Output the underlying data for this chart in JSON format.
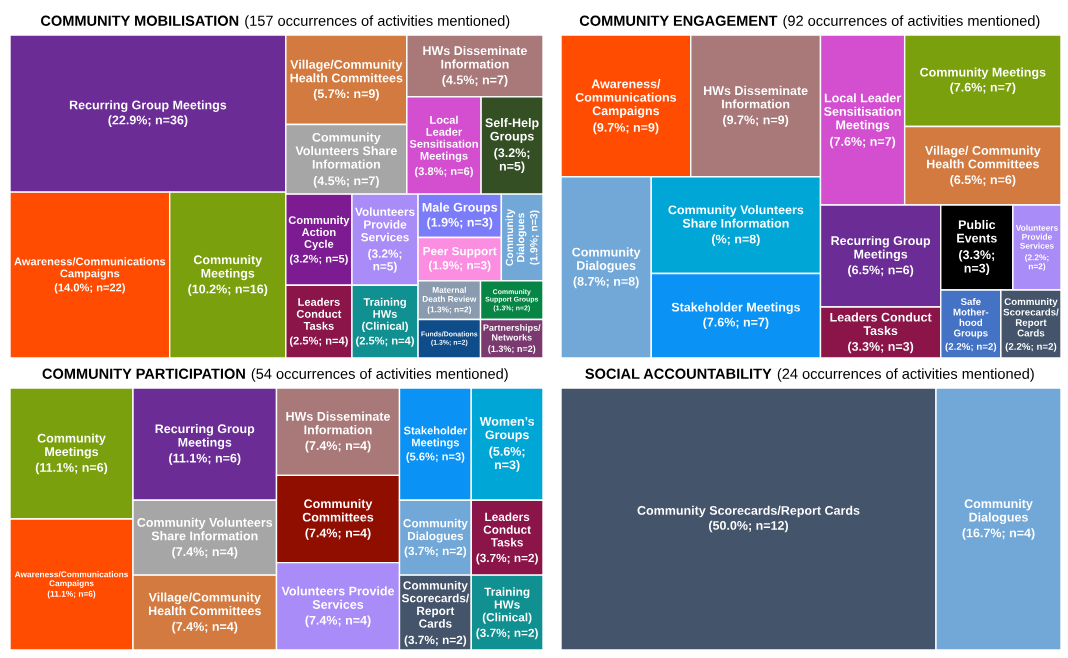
{
  "chart_data": [
    {
      "type": "other",
      "title": "COMMUNITY MOBILISATION",
      "subtitle": "(157 occurrences of activities mentioned)",
      "categories": [
        "Recurring Group Meetings",
        "Awareness/Communications Campaigns",
        "Community Meetings",
        "Village/Community Health Committees",
        "Community Volunteers Share Information",
        "HWs Disseminate Information",
        "Local Leader Sensitisation Meetings",
        "Self-Help Groups",
        "Community Action Cycle",
        "Volunteers Provide Services",
        "Leaders Conduct Tasks",
        "Training HWs (Clinical)",
        "Male Groups",
        "Peer Support",
        "Community Dialogues",
        "Maternal Death Review",
        "Funds/Donations",
        "Community Support Groups",
        "Partnerships/ Networks"
      ],
      "values": [
        36,
        22,
        16,
        9,
        7,
        7,
        6,
        5,
        5,
        5,
        4,
        4,
        3,
        3,
        3,
        2,
        2,
        2,
        2
      ],
      "value_labels": [
        "(22.9%; n=36)",
        "(14.0%; n=22)",
        "(10.2%; n=16)",
        "(5.7%: n=9)",
        "(4.5%; n=7)",
        "(4.5%; n=7)",
        "(3.8%; n=6)",
        "(3.2%; n=5)",
        "(3.2%; n=5)",
        "(3.2%; n=5)",
        "(2.5%; n=4)",
        "(2.5%; n=4)",
        "(1.9%; n=3)",
        "(1.9%; n=3)",
        "(1.9%; n=3)",
        "(1.3%; n=2)",
        "(1.3%; n=2)",
        "(1.3%; n=2)",
        "(1.3%; n=2)"
      ],
      "colors": [
        "#6b2c96",
        "#ff4c00",
        "#7aa00d",
        "#d27a3f",
        "#a6a6a6",
        "#a97878",
        "#d44fcf",
        "#344f24",
        "#7d1b92",
        "#a98cf8",
        "#8b1448",
        "#109090",
        "#7b7cfa",
        "#fb8ee0",
        "#72a8d8",
        "#8a9bb0",
        "#0f4d8a",
        "#078545",
        "#7a3a70"
      ]
    },
    {
      "type": "other",
      "title": "COMMUNITY ENGAGEMENT",
      "subtitle": "(92 occurrences of activities mentioned)",
      "categories": [
        "Awareness/ Communications Campaigns",
        "HWs Disseminate Information",
        "Community Dialogues",
        "Community Volunteers Share Information",
        "Stakeholder Meetings",
        "Local Leader Sensitisation Meetings",
        "Community Meetings",
        "Village/ Community Health Committees",
        "Recurring Group Meetings",
        "Leaders Conduct Tasks",
        "Public Events",
        "Volunteers Provide Services",
        "Safe Mother- hood Groups",
        "Community Scorecards/ Report Cards"
      ],
      "values": [
        9,
        9,
        8,
        8,
        7,
        7,
        7,
        6,
        6,
        3,
        3,
        2,
        2,
        2
      ],
      "value_labels": [
        "(9.7%; n=9)",
        "(9.7%; n=9)",
        "(8.7%; n=8)",
        "(%; n=8)",
        "(7.6%; n=7)",
        "(7.6%; n=7)",
        "(7.6%; n=7)",
        "(6.5%; n=6)",
        "(6.5%; n=6)",
        "(3.3%; n=3)",
        "(3.3%; n=3)",
        "(2.2%; n=2)",
        "(2.2%; n=2)",
        "(2.2%; n=2)"
      ],
      "colors": [
        "#ff4c00",
        "#a97878",
        "#72a8d8",
        "#00a6d6",
        "#0a93f5",
        "#d44fcf",
        "#7aa00d",
        "#d27a3f",
        "#6b2c96",
        "#8b1448",
        "#000000",
        "#a98cf8",
        "#4472c4",
        "#44546a"
      ]
    },
    {
      "type": "other",
      "title": "COMMUNITY PARTICIPATION",
      "subtitle": "(54 occurrences of activities mentioned)",
      "categories": [
        "Community Meetings",
        "Awareness/Communications Campaigns",
        "Recurring Group Meetings",
        "Community Volunteers Share Information",
        "Village/Community Health Committees",
        "HWs Disseminate Information",
        "Community Committees",
        "Volunteers Provide Services",
        "Stakeholder Meetings",
        "Women’s Groups",
        "Community Dialogues",
        "Leaders Conduct Tasks",
        "Community Scorecards/ Report Cards",
        "Training HWs (Clinical)"
      ],
      "values": [
        6,
        6,
        6,
        4,
        4,
        4,
        4,
        4,
        3,
        3,
        2,
        2,
        2,
        2
      ],
      "value_labels": [
        "(11.1%; n=6)",
        "(11.1%; n=6)",
        "(11.1%; n=6)",
        "(7.4%; n=4)",
        "(7.4%; n=4)",
        "(7.4%; n=4)",
        "(7.4%; n=4)",
        "(7.4%; n=4)",
        "(5.6%; n=3)",
        "(5.6%; n=3)",
        "(3.7%; n=2)",
        "(3.7%; n=2)",
        "(3.7%; n=2)",
        "(3.7%; n=2)"
      ],
      "colors": [
        "#7aa00d",
        "#ff4c00",
        "#6b2c96",
        "#a6a6a6",
        "#d27a3f",
        "#a97878",
        "#8f0e00",
        "#a98cf8",
        "#0a93f5",
        "#00a6d6",
        "#72a8d8",
        "#8b1448",
        "#44546a",
        "#109090"
      ]
    },
    {
      "type": "other",
      "title": "SOCIAL ACCOUNTABILITY",
      "subtitle": "(24 occurrences of activities mentioned)",
      "categories": [
        "Community Scorecards/Report Cards",
        "Community Dialogues"
      ],
      "values": [
        12,
        4
      ],
      "value_labels": [
        "(50.0%; n=12)",
        "(16.7%; n=4)"
      ],
      "colors": [
        "#44546a",
        "#72a8d8"
      ]
    }
  ]
}
